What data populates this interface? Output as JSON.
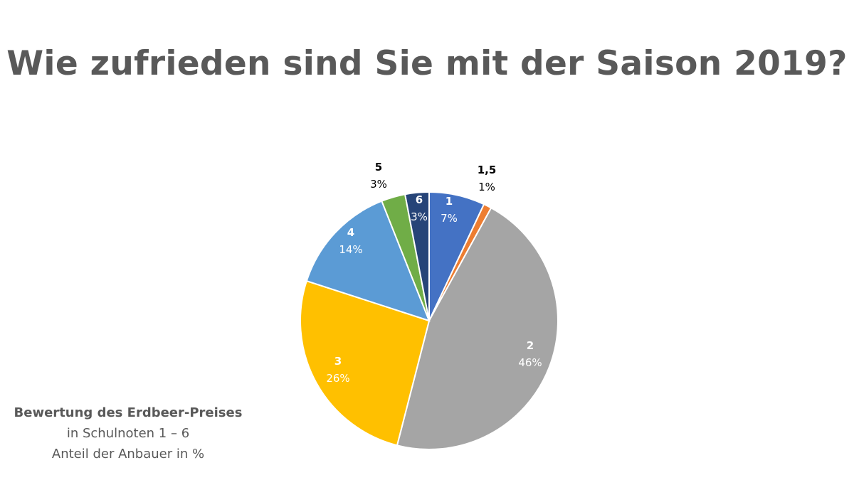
{
  "title": "Wie zufrieden sind Sie mit der Saison 2019?",
  "caption": {
    "line1": "Bewertung des Erdbeer-Preises",
    "line2": "in Schulnoten 1 – 6",
    "line3": "Anteil der Anbauer in %"
  },
  "chart_data": {
    "type": "pie",
    "title": "Wie zufrieden sind Sie mit der Saison 2019?",
    "start_angle_deg": 0,
    "direction": "clockwise",
    "slices": [
      {
        "category": "1",
        "value": 7,
        "label": "7%",
        "color": "#4472C4",
        "label_color": "#ffffff",
        "label_placement": "inside"
      },
      {
        "category": "1,5",
        "value": 1,
        "label": "1%",
        "color": "#ED7D31",
        "label_color": "#000000",
        "label_placement": "outside"
      },
      {
        "category": "2",
        "value": 46,
        "label": "46%",
        "color": "#A5A5A5",
        "label_color": "#ffffff",
        "label_placement": "inside"
      },
      {
        "category": "3",
        "value": 26,
        "label": "26%",
        "color": "#FFC000",
        "label_color": "#ffffff",
        "label_placement": "inside"
      },
      {
        "category": "4",
        "value": 14,
        "label": "14%",
        "color": "#5B9BD5",
        "label_color": "#ffffff",
        "label_placement": "inside"
      },
      {
        "category": "5",
        "value": 3,
        "label": "3%",
        "color": "#70AD47",
        "label_color": "#000000",
        "label_placement": "outside"
      },
      {
        "category": "6",
        "value": 3,
        "label": "3%",
        "color": "#264478",
        "label_color": "#ffffff",
        "label_placement": "inside"
      }
    ]
  }
}
